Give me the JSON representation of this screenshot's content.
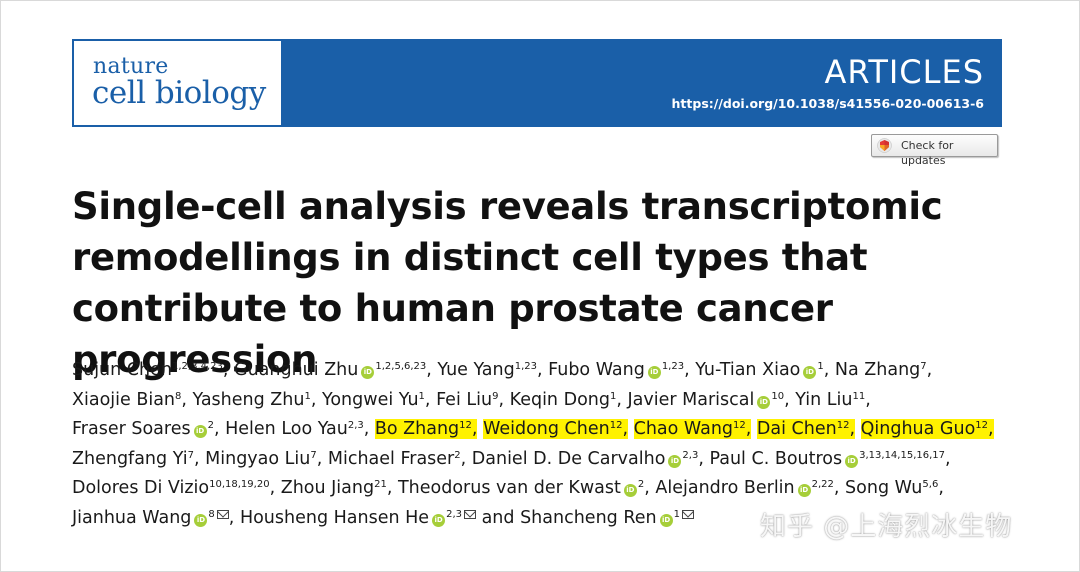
{
  "journal": {
    "logo_line1": "nature",
    "logo_line2": "cell biology",
    "section": "ARTICLES",
    "doi": "https://doi.org/10.1038/s41556-020-00613-6",
    "brand_color": "#1a5fa8"
  },
  "check_updates": {
    "label": "Check for updates",
    "icon": "crossmark-icon"
  },
  "title": "Single-cell analysis reveals transcriptomic remodellings in distinct cell types that contribute to human prostate cancer progression",
  "authors": [
    {
      "name": "Sujun Chen",
      "sup": "1,2,3,4,23",
      "orcid": false,
      "highlight": false
    },
    {
      "name": "Guanghui Zhu",
      "sup": "1,2,5,6,23",
      "orcid": true,
      "highlight": false
    },
    {
      "name": "Yue Yang",
      "sup": "1,23",
      "orcid": false,
      "highlight": false
    },
    {
      "name": "Fubo Wang",
      "sup": "1,23",
      "orcid": true,
      "highlight": false
    },
    {
      "name": "Yu-Tian Xiao",
      "sup": "1",
      "orcid": true,
      "highlight": false
    },
    {
      "name": "Na Zhang",
      "sup": "7",
      "orcid": false,
      "highlight": false
    },
    {
      "name": "Xiaojie Bian",
      "sup": "8",
      "orcid": false,
      "highlight": false
    },
    {
      "name": "Yasheng Zhu",
      "sup": "1",
      "orcid": false,
      "highlight": false
    },
    {
      "name": "Yongwei Yu",
      "sup": "1",
      "orcid": false,
      "highlight": false
    },
    {
      "name": "Fei Liu",
      "sup": "9",
      "orcid": false,
      "highlight": false
    },
    {
      "name": "Keqin Dong",
      "sup": "1",
      "orcid": false,
      "highlight": false
    },
    {
      "name": "Javier Mariscal",
      "sup": "10",
      "orcid": true,
      "highlight": false
    },
    {
      "name": "Yin Liu",
      "sup": "11",
      "orcid": false,
      "highlight": false
    },
    {
      "name": "Fraser Soares",
      "sup": "2",
      "orcid": true,
      "highlight": false
    },
    {
      "name": "Helen Loo Yau",
      "sup": "2,3",
      "orcid": false,
      "highlight": false
    },
    {
      "name": "Bo Zhang",
      "sup": "12",
      "orcid": false,
      "highlight": true
    },
    {
      "name": "Weidong Chen",
      "sup": "12",
      "orcid": false,
      "highlight": true
    },
    {
      "name": "Chao Wang",
      "sup": "12",
      "orcid": false,
      "highlight": true
    },
    {
      "name": "Dai Chen",
      "sup": "12",
      "orcid": false,
      "highlight": true
    },
    {
      "name": "Qinghua Guo",
      "sup": "12",
      "orcid": false,
      "highlight": true
    },
    {
      "name": "Zhengfang Yi",
      "sup": "7",
      "orcid": false,
      "highlight": false
    },
    {
      "name": "Mingyao Liu",
      "sup": "7",
      "orcid": false,
      "highlight": false
    },
    {
      "name": "Michael Fraser",
      "sup": "2",
      "orcid": false,
      "highlight": false
    },
    {
      "name": "Daniel D. De Carvalho",
      "sup": "2,3",
      "orcid": true,
      "highlight": false
    },
    {
      "name": "Paul C. Boutros",
      "sup": "3,13,14,15,16,17",
      "orcid": true,
      "highlight": false
    },
    {
      "name": "Dolores Di Vizio",
      "sup": "10,18,19,20",
      "orcid": false,
      "highlight": false
    },
    {
      "name": "Zhou Jiang",
      "sup": "21",
      "orcid": false,
      "highlight": false
    },
    {
      "name": "Theodorus van der Kwast",
      "sup": "2",
      "orcid": true,
      "highlight": false
    },
    {
      "name": "Alejandro Berlin",
      "sup": "2,22",
      "orcid": true,
      "highlight": false
    },
    {
      "name": "Song Wu",
      "sup": "5,6",
      "orcid": false,
      "highlight": false
    },
    {
      "name": "Jianhua Wang",
      "sup": "8",
      "orcid": true,
      "highlight": false,
      "corresponding": true
    },
    {
      "name": "Housheng Hansen He",
      "sup": "2,3",
      "orcid": true,
      "highlight": false,
      "corresponding": true
    },
    {
      "name": "Shancheng Ren",
      "sup": "1",
      "orcid": true,
      "highlight": false,
      "corresponding": true
    }
  ],
  "and_word": "and",
  "highlight_color": "#fff200",
  "watermark": "知乎 @上海烈冰生物"
}
